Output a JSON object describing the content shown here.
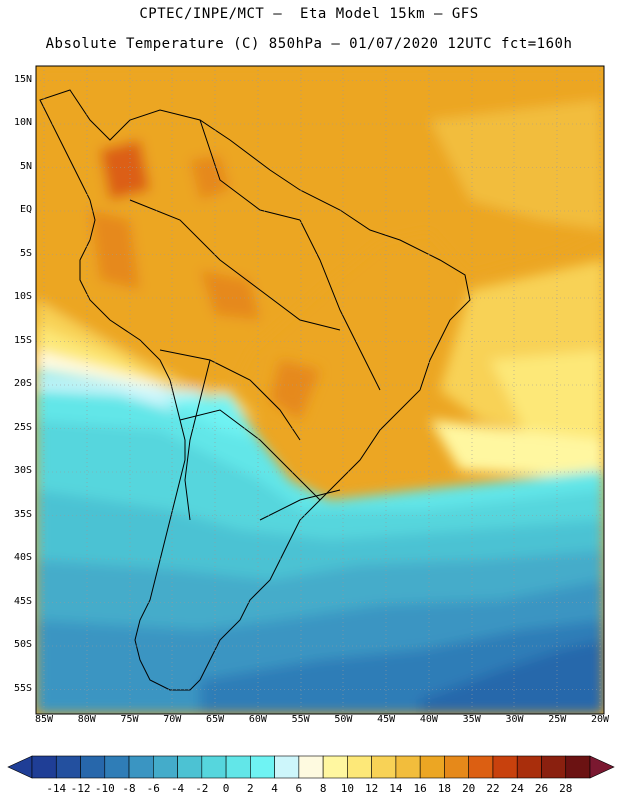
{
  "header": {
    "line1": "CPTEC/INPE/MCT –  Eta Model 15km – GFS",
    "line2": "Absolute Temperature (C) 850hPa – 01/07/2020 12UTC fct=160h"
  },
  "map": {
    "lat_labels": [
      "15N",
      "10N",
      "5N",
      "EQ",
      "5S",
      "10S",
      "15S",
      "20S",
      "25S",
      "30S",
      "35S",
      "40S",
      "45S",
      "50S",
      "55S"
    ],
    "lon_labels": [
      "85W",
      "80W",
      "75W",
      "70W",
      "65W",
      "60W",
      "55W",
      "50W",
      "45W",
      "40W",
      "35W",
      "30W",
      "25W",
      "20W"
    ]
  },
  "colorbar": {
    "labels": [
      "-14",
      "-12",
      "-10",
      "-8",
      "-6",
      "-4",
      "-2",
      "0",
      "2",
      "4",
      "6",
      "8",
      "10",
      "12",
      "14",
      "16",
      "18",
      "20",
      "22",
      "24",
      "26",
      "28"
    ],
    "colors": [
      "#1f3e96",
      "#23509f",
      "#2767ab",
      "#2f7db7",
      "#3a95c2",
      "#44acca",
      "#4cc2d3",
      "#56d6dd",
      "#62e6e8",
      "#6ff3f3",
      "#cdf6fb",
      "#fefae0",
      "#fff7a0",
      "#fde878",
      "#f8d256",
      "#f2bd3c",
      "#eca623",
      "#e6891a",
      "#dc5f12",
      "#c8410d",
      "#a92e0c",
      "#8a200f",
      "#6b1212"
    ]
  }
}
